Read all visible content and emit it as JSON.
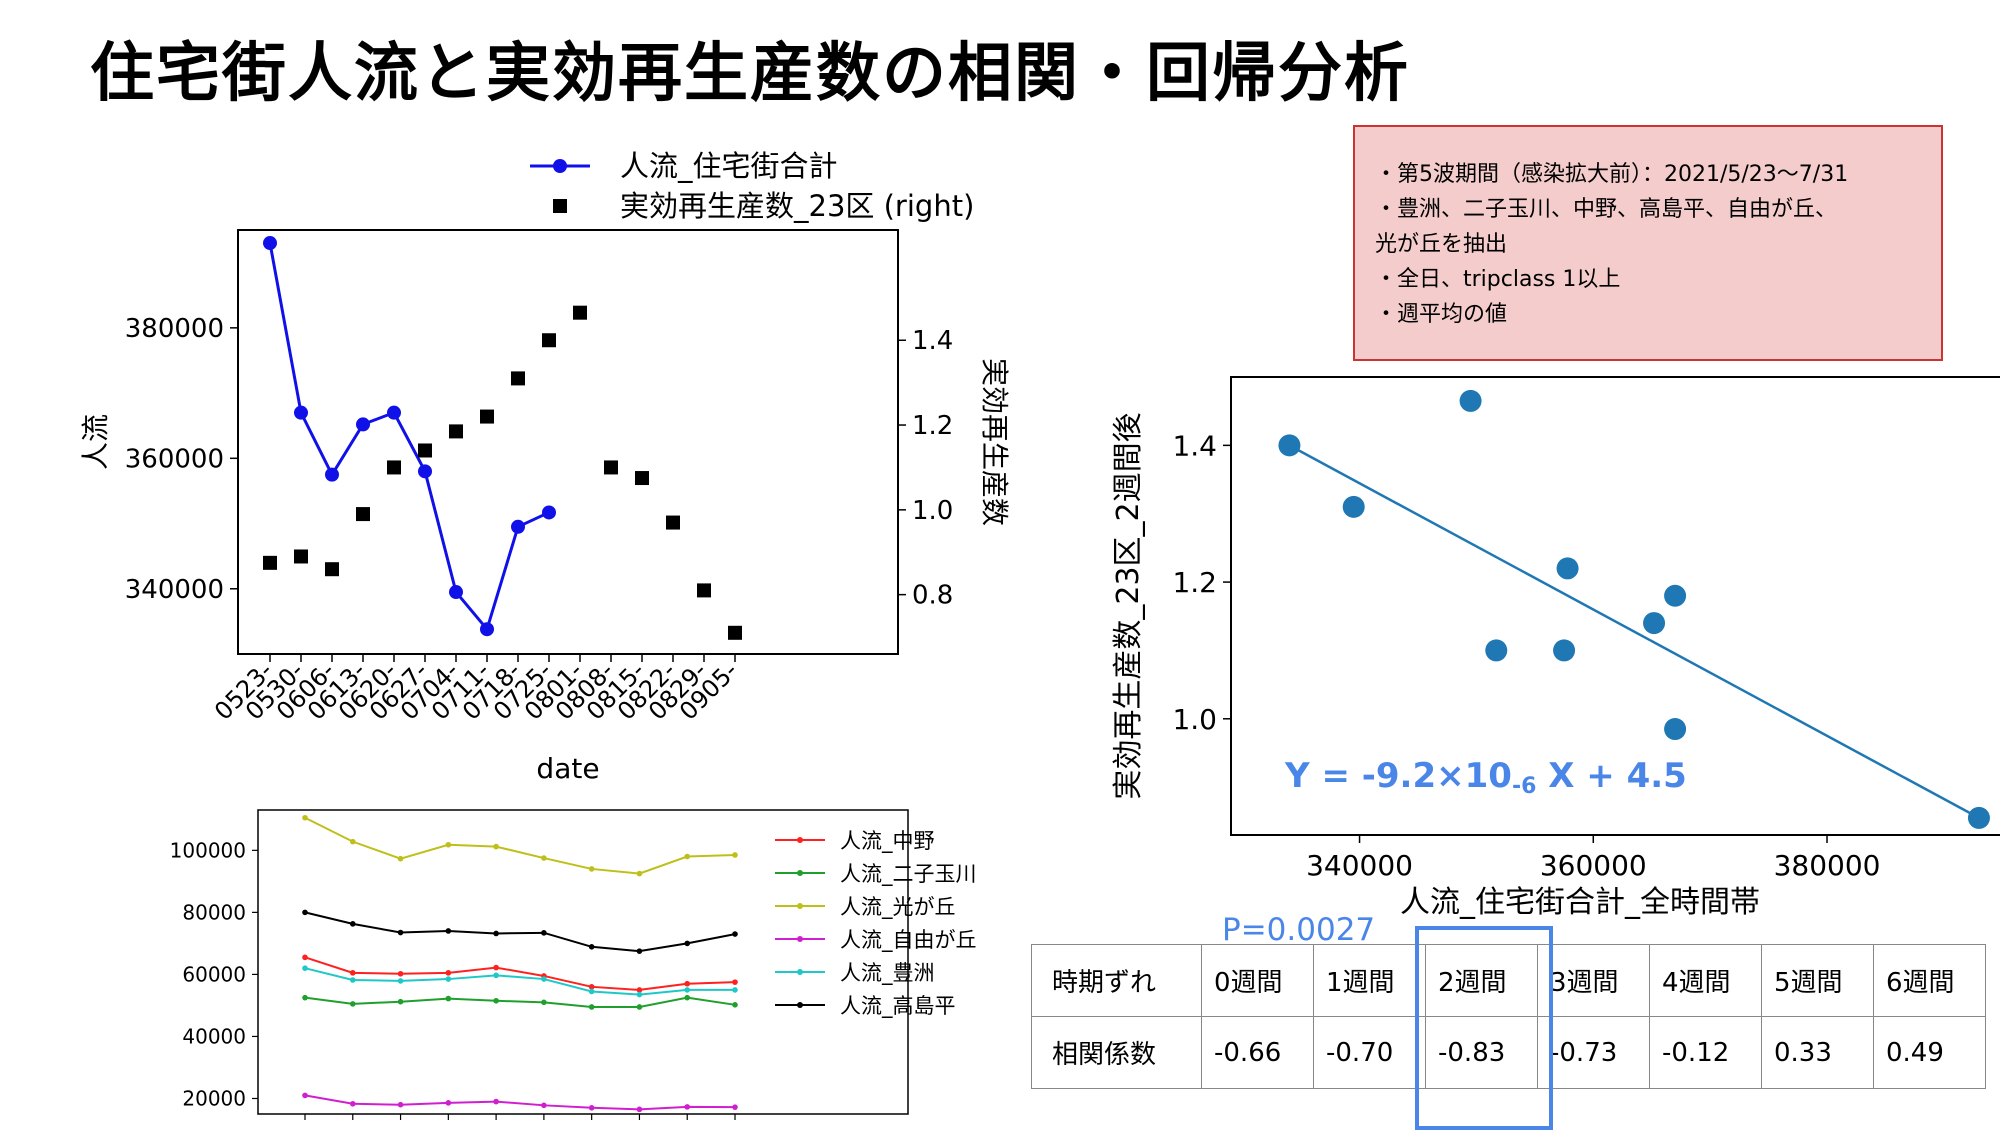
{
  "title": "住宅街人流と実効再生産数の相関・回帰分析",
  "note": {
    "lines": [
      "・第5波期間（感染拡大前）：2021/5/23〜7/31",
      "・豊洲、二子玉川、中野、高島平、自由が丘、",
      "光が丘を抽出",
      "・全日、tripclass 1以上",
      "・週平均の値"
    ]
  },
  "chart_data": [
    {
      "type": "line",
      "xlabel": "date",
      "ylabel": "人流",
      "y2label": "実効再生産数",
      "categories": [
        "0523-",
        "0530-",
        "0606-",
        "0613-",
        "0620-",
        "0627-",
        "0704-",
        "0711-",
        "0718-",
        "0725-",
        "0801-",
        "0808-",
        "0815-",
        "0822-",
        "0829-",
        "0905-"
      ],
      "ylim": [
        330000,
        395000
      ],
      "y2lim": [
        0.66,
        1.66
      ],
      "yticks": [
        340000,
        360000,
        380000
      ],
      "y2ticks": [
        "0.8",
        "1.0",
        "1.2",
        "1.4"
      ],
      "series": [
        {
          "name": "人流_住宅街合計",
          "axis": "left",
          "color": "#1010e8",
          "marker": "circle",
          "values": [
            393000,
            367000,
            357500,
            365200,
            367000,
            358000,
            339500,
            333800,
            349500,
            351700,
            null,
            null,
            null,
            null,
            null,
            null
          ]
        },
        {
          "name": "実効再生産数_23区 (right)",
          "axis": "right",
          "color": "#000000",
          "marker": "square",
          "values": [
            0.875,
            0.89,
            0.86,
            0.99,
            1.1,
            1.14,
            1.185,
            1.22,
            1.31,
            1.4,
            1.465,
            1.1,
            1.075,
            0.97,
            0.81,
            0.71
          ]
        }
      ],
      "legend": "top"
    },
    {
      "type": "scatter",
      "xlabel": "人流_住宅街合計_全時間帯",
      "ylabel": "実効再生産数_23区_2週間後",
      "xlim": [
        329000,
        396000
      ],
      "ylim": [
        0.83,
        1.5
      ],
      "xticks": [
        340000,
        360000,
        380000
      ],
      "yticks": [
        "1.0",
        "1.2",
        "1.4"
      ],
      "points": [
        {
          "x": 334000,
          "y": 1.4
        },
        {
          "x": 339500,
          "y": 1.31
        },
        {
          "x": 349500,
          "y": 1.465
        },
        {
          "x": 351700,
          "y": 1.1
        },
        {
          "x": 357500,
          "y": 1.1
        },
        {
          "x": 357800,
          "y": 1.22
        },
        {
          "x": 365200,
          "y": 1.14
        },
        {
          "x": 367000,
          "y": 1.18
        },
        {
          "x": 367000,
          "y": 0.985
        },
        {
          "x": 393000,
          "y": 0.855
        }
      ],
      "fit_line": {
        "x0": 334000,
        "y0": 1.4,
        "x1": 393000,
        "y1": 0.855
      },
      "annotation": {
        "parts": [
          "Y = -9.2×10",
          "-6",
          " X + 4.5"
        ]
      },
      "color": "#1f77b4"
    },
    {
      "type": "line",
      "ylim": [
        15000,
        113000
      ],
      "yticks": [
        20000,
        40000,
        60000,
        80000,
        100000
      ],
      "n_points": 10,
      "series": [
        {
          "name": "人流_中野",
          "color": "#ff2020",
          "values": [
            65500,
            60500,
            60200,
            60500,
            62200,
            59500,
            56000,
            55000,
            57000,
            57500
          ]
        },
        {
          "name": "人流_二子玉川",
          "color": "#1fa02c",
          "values": [
            52500,
            50500,
            51200,
            52200,
            51500,
            51000,
            49500,
            49500,
            52500,
            50200
          ]
        },
        {
          "name": "人流_光が丘",
          "color": "#bfbf1a",
          "values": [
            110500,
            102800,
            97300,
            101800,
            101200,
            97500,
            94000,
            92500,
            98000,
            98500
          ]
        },
        {
          "name": "人流_自由が丘",
          "color": "#d01fd0",
          "values": [
            21000,
            18300,
            18000,
            18600,
            19000,
            17800,
            17000,
            16500,
            17300,
            17200
          ]
        },
        {
          "name": "人流_豊洲",
          "color": "#1fc8c8",
          "values": [
            62000,
            58200,
            57900,
            58500,
            59700,
            58500,
            54500,
            53500,
            55000,
            55000
          ]
        },
        {
          "name": "人流_高島平",
          "color": "#000000",
          "values": [
            80000,
            76300,
            73500,
            74000,
            73200,
            73400,
            68900,
            67500,
            70000,
            73000
          ]
        }
      ],
      "legend": "right"
    }
  ],
  "table": {
    "header": "時期ずれ",
    "lags": [
      "0週間",
      "1週間",
      "2週間",
      "3週間",
      "4週間",
      "5週間",
      "6週間"
    ],
    "row_label": "相関係数",
    "values": [
      "-0.66",
      "-0.70",
      "-0.83",
      "-0.73",
      "-0.12",
      "0.33",
      "0.49"
    ],
    "p_value": "P=0.0027"
  }
}
